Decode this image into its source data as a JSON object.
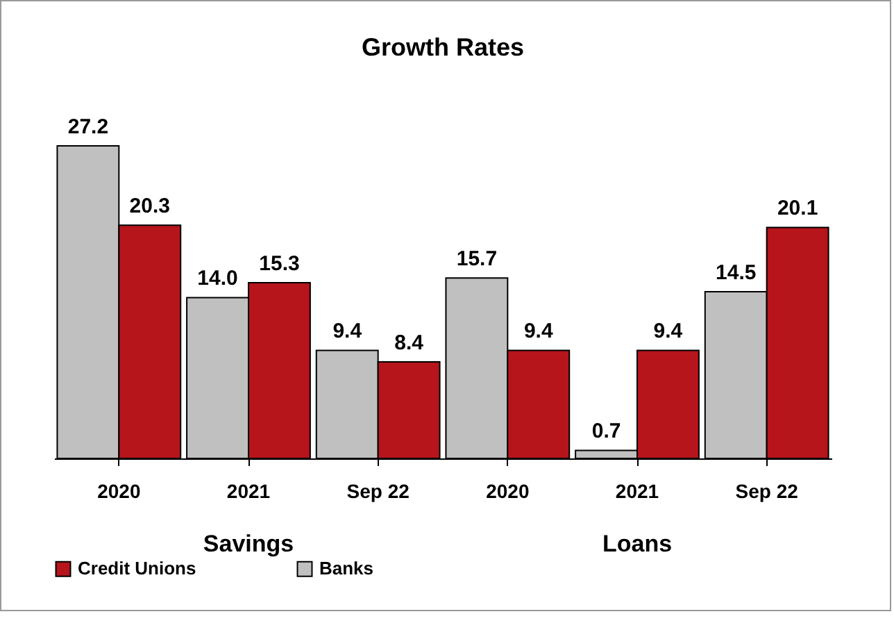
{
  "chart_data": {
    "type": "bar",
    "title": "Growth Rates",
    "categories": [
      "2020",
      "2021",
      "Sep 22",
      "2020",
      "2021",
      "Sep 22"
    ],
    "series": [
      {
        "name": "Banks",
        "color": "#c0c0c0",
        "values": [
          27.2,
          14.0,
          9.4,
          15.7,
          0.7,
          14.5
        ],
        "value_labels": [
          "27.2",
          "14.0",
          "9.4",
          "15.7",
          "0.7",
          "14.5"
        ]
      },
      {
        "name": "Credit Unions",
        "color": "#b5151b",
        "values": [
          20.3,
          15.3,
          8.4,
          9.4,
          9.4,
          20.1
        ],
        "value_labels": [
          "20.3",
          "15.3",
          "8.4",
          "9.4",
          "9.4",
          "20.1"
        ]
      }
    ],
    "grid": false,
    "legend": "bottom",
    "annotations": [
      "Savings",
      "Loans"
    ]
  }
}
